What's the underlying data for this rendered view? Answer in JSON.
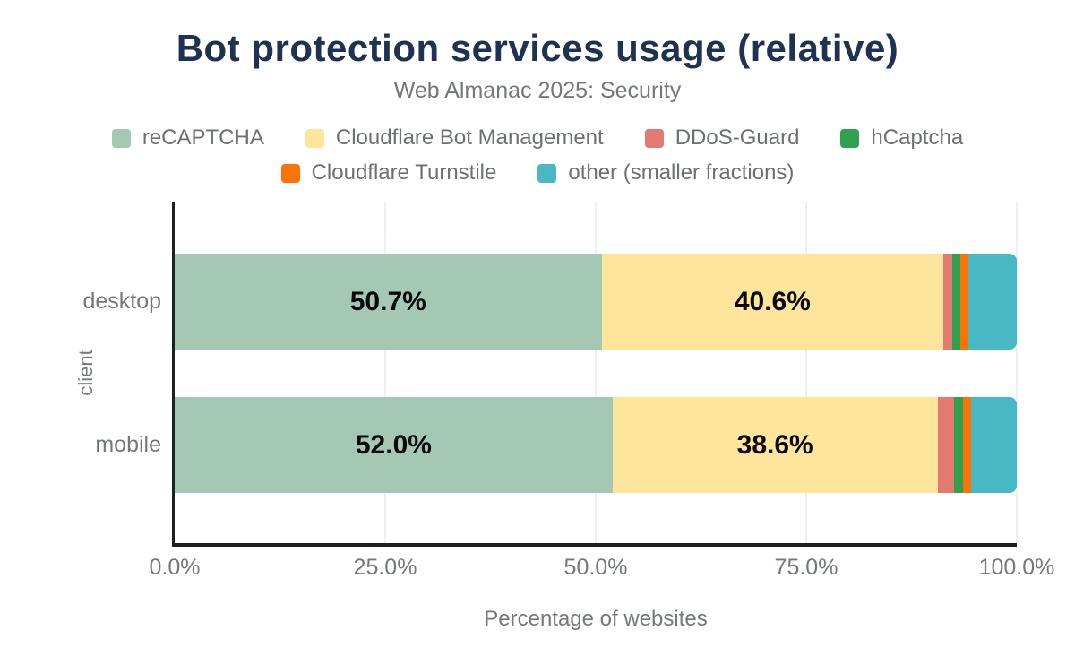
{
  "chart_data": {
    "type": "bar",
    "stacked": true,
    "orientation": "horizontal",
    "title": "Bot protection services usage (relative)",
    "subtitle": "Web Almanac 2025: Security",
    "xlabel": "Percentage of websites",
    "ylabel": "client",
    "categories": [
      "desktop",
      "mobile"
    ],
    "series": [
      {
        "name": "reCAPTCHA",
        "color": "#a5c8b5",
        "values": [
          50.7,
          52.0
        ]
      },
      {
        "name": "Cloudflare Bot Management",
        "color": "#fee59c",
        "values": [
          40.6,
          38.6
        ]
      },
      {
        "name": "DDoS-Guard",
        "color": "#e27a72",
        "values": [
          1.0,
          2.0
        ]
      },
      {
        "name": "hCaptcha",
        "color": "#2fa04e",
        "values": [
          1.0,
          1.0
        ]
      },
      {
        "name": "Cloudflare Turnstile",
        "color": "#fb7304",
        "values": [
          1.0,
          1.0
        ]
      },
      {
        "name": "other (smaller fractions)",
        "color": "#46b9c5",
        "values": [
          5.7,
          5.4
        ]
      }
    ],
    "visible_value_labels": [
      "50.7%",
      "40.6%",
      "52.0%",
      "38.6%"
    ],
    "value_label_min": 10,
    "value_label_suffix": "%",
    "xlim": [
      0,
      100
    ],
    "x_ticks": [
      {
        "label": "0.0%",
        "value": 0
      },
      {
        "label": "25.0%",
        "value": 25
      },
      {
        "label": "50.0%",
        "value": 50
      },
      {
        "label": "75.0%",
        "value": 75
      },
      {
        "label": "100.0%",
        "value": 100
      }
    ],
    "grid": "vertical",
    "legend_position": "top"
  },
  "style_colors": {
    "title": "#1f3251",
    "muted_text": "#75787b",
    "axis": "#1f1f1f",
    "gridline": "#efefef"
  }
}
